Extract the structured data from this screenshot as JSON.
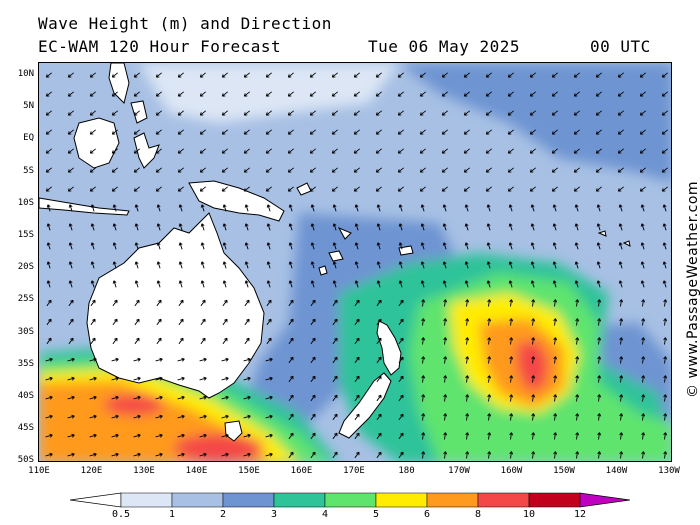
{
  "header": {
    "title": "Wave Height (m) and Direction",
    "model": "EC-WAM 120 Hour Forecast",
    "date": "Tue 06 May 2025",
    "time": "00 UTC"
  },
  "credit": "© www.PassageWeather.com",
  "lat_labels": [
    "10N",
    "5N",
    "EQ",
    "5S",
    "10S",
    "15S",
    "20S",
    "25S",
    "30S",
    "35S",
    "40S",
    "45S",
    "50S"
  ],
  "lon_labels": [
    "110E",
    "120E",
    "130E",
    "140E",
    "150E",
    "160E",
    "170E",
    "180",
    "170W",
    "160W",
    "150W",
    "140W",
    "130W"
  ],
  "legend": {
    "values": [
      "0.5",
      "1",
      "2",
      "3",
      "4",
      "5",
      "6",
      "8",
      "10",
      "12"
    ],
    "colors": [
      "#ffffff",
      "#dce6f5",
      "#a7c0e4",
      "#6e94d2",
      "#2fc39a",
      "#5fe46e",
      "#ffec00",
      "#ff9a1e",
      "#f44747",
      "#c2001e",
      "#c000c0"
    ]
  },
  "colors": {
    "land": "#ffffff",
    "coast": "#000000",
    "arrow": "#000000"
  }
}
